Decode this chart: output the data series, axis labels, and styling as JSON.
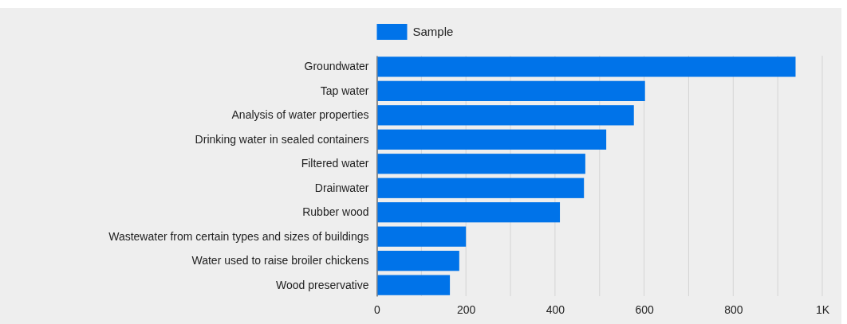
{
  "chart_data": {
    "type": "bar",
    "orientation": "horizontal",
    "categories": [
      "Groundwater",
      "Tap water",
      "Analysis of water properties",
      "Drinking water in sealed containers",
      "Filtered water",
      "Drainwater",
      "Rubber wood",
      "Wastewater from certain types and sizes of buildings",
      "Water used to raise broiler chickens",
      "Wood preservative"
    ],
    "series": [
      {
        "name": "Sample",
        "color": "#0073e9",
        "values": [
          940,
          602,
          577,
          515,
          468,
          465,
          411,
          200,
          185,
          164
        ]
      }
    ],
    "xlim": [
      0,
      1000
    ],
    "xticks": [
      0,
      {
        "value": 100,
        "label": null
      },
      200,
      {
        "value": 300,
        "label": null
      },
      400,
      {
        "value": 500,
        "label": null
      },
      600,
      {
        "value": 700,
        "label": null
      },
      800,
      {
        "value": 900,
        "label": null
      },
      {
        "value": 1000,
        "label": "1K"
      }
    ],
    "grid": "x",
    "legend": "top left"
  }
}
